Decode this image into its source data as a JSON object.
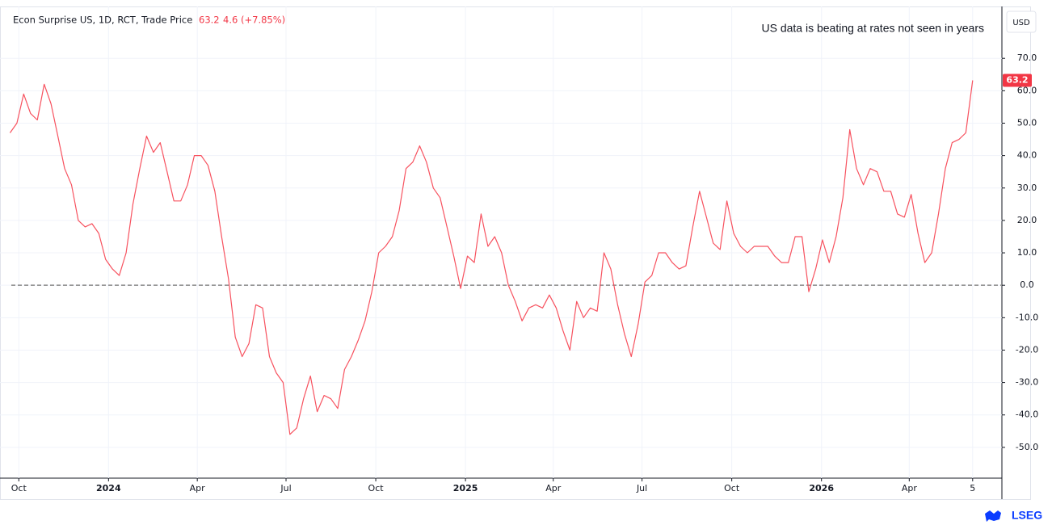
{
  "chart_data": {
    "type": "line",
    "title": "Econ Surprise US, 1D, RCT, Trade Price",
    "change": 4.6,
    "change_percent": {
      "value": 7.85,
      "label": "(+7.85%)"
    },
    "annotation": "US data is beating at rates not seen in years",
    "currency": "USD",
    "logo": "LSEG",
    "color": "#f7525f",
    "grid": true,
    "reference_line": 0,
    "xlim": [
      "2023-09-20",
      "2026-07-05"
    ],
    "ylim": [
      -59.5,
      85.5
    ],
    "xticks": [
      {
        "value": "2023-10-01",
        "label": "Oct"
      },
      {
        "value": "2024-01-01",
        "label": "2024"
      },
      {
        "value": "2024-04-01",
        "label": "Apr"
      },
      {
        "value": "2024-07-01",
        "label": "Jul"
      },
      {
        "value": "2024-10-01",
        "label": "Oct"
      },
      {
        "value": "2025-01-01",
        "label": "2025"
      },
      {
        "value": "2025-04-01",
        "label": "Apr"
      },
      {
        "value": "2025-07-01",
        "label": "Jul"
      },
      {
        "value": "2025-10-01",
        "label": "Oct"
      },
      {
        "value": "2026-01-01",
        "label": "2026"
      },
      {
        "value": "2026-04-01",
        "label": "Apr"
      },
      {
        "value": "2026-06-05",
        "label": "5"
      }
    ],
    "yticks": [
      {
        "value": 70,
        "label": "70.0"
      },
      {
        "value": 60,
        "label": "60.0"
      },
      {
        "value": 50,
        "label": "50.0"
      },
      {
        "value": 40,
        "label": "40.0"
      },
      {
        "value": 30,
        "label": "30.0"
      },
      {
        "value": 20,
        "label": "20.0"
      },
      {
        "value": 10,
        "label": "10.0"
      },
      {
        "value": 0,
        "label": "0.0"
      },
      {
        "value": -10,
        "label": "-10.0"
      },
      {
        "value": -20,
        "label": "-20.0"
      },
      {
        "value": -30,
        "label": "-30.0"
      },
      {
        "value": -40,
        "label": "-40.0"
      },
      {
        "value": -50,
        "label": "-50.0"
      }
    ],
    "x": [
      "2023-09-22",
      "2023-09-29",
      "2023-10-06",
      "2023-10-13",
      "2023-10-20",
      "2023-10-27",
      "2023-11-03",
      "2023-11-10",
      "2023-11-17",
      "2023-11-24",
      "2023-12-01",
      "2023-12-08",
      "2023-12-15",
      "2023-12-22",
      "2023-12-29",
      "2024-01-05",
      "2024-01-12",
      "2024-01-19",
      "2024-01-26",
      "2024-02-02",
      "2024-02-09",
      "2024-02-16",
      "2024-02-23",
      "2024-03-01",
      "2024-03-08",
      "2024-03-15",
      "2024-03-22",
      "2024-03-29",
      "2024-04-05",
      "2024-04-12",
      "2024-04-19",
      "2024-04-26",
      "2024-05-03",
      "2024-05-10",
      "2024-05-17",
      "2024-05-24",
      "2024-05-31",
      "2024-06-07",
      "2024-06-14",
      "2024-06-21",
      "2024-06-28",
      "2024-07-05",
      "2024-07-12",
      "2024-07-19",
      "2024-07-26",
      "2024-08-02",
      "2024-08-09",
      "2024-08-16",
      "2024-08-23",
      "2024-08-30",
      "2024-09-06",
      "2024-09-13",
      "2024-09-20",
      "2024-09-27",
      "2024-10-04",
      "2024-10-11",
      "2024-10-18",
      "2024-10-25",
      "2024-11-01",
      "2024-11-08",
      "2024-11-15",
      "2024-11-22",
      "2024-11-29",
      "2024-12-06",
      "2024-12-13",
      "2024-12-20",
      "2024-12-27",
      "2025-01-03",
      "2025-01-10",
      "2025-01-17",
      "2025-01-24",
      "2025-01-31",
      "2025-02-07",
      "2025-02-14",
      "2025-02-21",
      "2025-02-28",
      "2025-03-07",
      "2025-03-14",
      "2025-03-21",
      "2025-03-28",
      "2025-04-04",
      "2025-04-11",
      "2025-04-18",
      "2025-04-25",
      "2025-05-02",
      "2025-05-09",
      "2025-05-16",
      "2025-05-23",
      "2025-05-30",
      "2025-06-06",
      "2025-06-13",
      "2025-06-20",
      "2025-06-27",
      "2025-07-04",
      "2025-07-11",
      "2025-07-18",
      "2025-07-25",
      "2025-08-01",
      "2025-08-08",
      "2025-08-15",
      "2025-08-22",
      "2025-08-29",
      "2025-09-05",
      "2025-09-12",
      "2025-09-19",
      "2025-09-26",
      "2025-10-03",
      "2025-10-10",
      "2025-10-17",
      "2025-10-24",
      "2025-10-31",
      "2025-11-07",
      "2025-11-14",
      "2025-11-21",
      "2025-11-28",
      "2025-12-05",
      "2025-12-12",
      "2025-12-19",
      "2025-12-26",
      "2026-01-02",
      "2026-01-09",
      "2026-01-16",
      "2026-01-23",
      "2026-01-30",
      "2026-02-06",
      "2026-02-13",
      "2026-02-20",
      "2026-02-27",
      "2026-03-06",
      "2026-03-13",
      "2026-03-20",
      "2026-03-27",
      "2026-04-03",
      "2026-04-10",
      "2026-04-17",
      "2026-04-24",
      "2026-05-01",
      "2026-05-08",
      "2026-05-15",
      "2026-05-22",
      "2026-05-29",
      "2026-06-05"
    ],
    "values": [
      47,
      50,
      59,
      53,
      51,
      62,
      56,
      46,
      36,
      31,
      20,
      18,
      19,
      16,
      8,
      5,
      3,
      10,
      25,
      36,
      46,
      41,
      44,
      35,
      26,
      26,
      31,
      40,
      40,
      37,
      29,
      15,
      2,
      -16,
      -22,
      -18,
      -6,
      -7,
      -22,
      -27,
      -30,
      -46,
      -44,
      -35,
      -28,
      -39,
      -34,
      -35,
      -38,
      -26,
      -22,
      -17,
      -11,
      -2,
      10,
      12,
      15,
      23,
      36,
      38,
      43,
      38,
      30,
      27,
      18,
      9,
      -1,
      9,
      7,
      22,
      12,
      15,
      10,
      0,
      -5,
      -11,
      -7,
      -6,
      -7,
      -3,
      -7,
      -14,
      -20,
      -5,
      -10,
      -7,
      -8,
      10,
      5,
      -6,
      -15,
      -22,
      -12,
      1,
      3,
      10,
      10,
      7,
      5,
      6,
      18,
      29,
      21,
      13,
      11,
      26,
      16,
      12,
      10,
      12,
      12,
      12,
      9,
      7,
      7,
      15,
      15,
      -2,
      5,
      14,
      7,
      15,
      27,
      48,
      36,
      31,
      36,
      35,
      29,
      29,
      22,
      21,
      28,
      16,
      7,
      10,
      22,
      36,
      44,
      45,
      47,
      63.2
    ]
  }
}
